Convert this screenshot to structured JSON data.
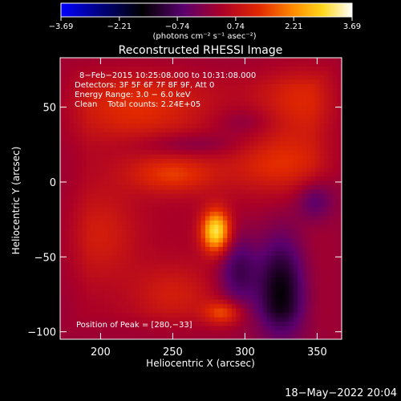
{
  "chart_data": {
    "type": "heatmap",
    "title": "Reconstructed RHESSI Image",
    "xlabel": "Heliocentric X (arcsec)",
    "ylabel": "Heliocentric Y (arcsec)",
    "xlim": [
      172,
      367
    ],
    "ylim": [
      -105,
      83
    ],
    "x_ticks": [
      200,
      250,
      300,
      350
    ],
    "y_ticks": [
      50,
      0,
      -50,
      -100
    ],
    "x_tick_labels": [
      "200",
      "250",
      "300",
      "350"
    ],
    "y_tick_labels": [
      "50",
      "0",
      "−50",
      "−100"
    ],
    "colorbar": {
      "min": -3.69,
      "max": 3.69,
      "ticks": [
        -3.69,
        -2.21,
        -0.74,
        0.74,
        2.21,
        3.69
      ],
      "tick_labels": [
        "−3.69",
        "−2.21",
        "−0.74",
        "0.74",
        "2.21",
        "3.69"
      ],
      "unit_label": "(photons cm⁻² s⁻¹ asec⁻²)"
    },
    "annotations": [
      "8−Feb−2015 10:25:08.000 to 10:31:08.000",
      "Detectors: 3F 5F 6F 7F 8F 9F, Att 0",
      "Energy Range: 3.0 − 6.0 keV",
      "Clean    Total counts: 2.24E+05",
      "Position of Peak = [280,−33]"
    ],
    "peak": {
      "x": 280,
      "y": -33,
      "value": 3.69
    },
    "sources": [
      {
        "x": 280,
        "y": -33,
        "sx": 7,
        "sy": 10,
        "amp": 2.9
      },
      {
        "x": 285,
        "y": -88,
        "sx": 9,
        "sy": 6,
        "amp": 1.4
      },
      {
        "x": 250,
        "y": 5,
        "sx": 22,
        "sy": 9,
        "amp": 1.1
      },
      {
        "x": 325,
        "y": 12,
        "sx": 25,
        "sy": 14,
        "amp": 1.0
      },
      {
        "x": 225,
        "y": 50,
        "sx": 35,
        "sy": 18,
        "amp": 1.0
      },
      {
        "x": 340,
        "y": 55,
        "sx": 22,
        "sy": 18,
        "amp": 0.9
      },
      {
        "x": 200,
        "y": -35,
        "sx": 18,
        "sy": 22,
        "amp": 0.7
      },
      {
        "x": 250,
        "y": -75,
        "sx": 20,
        "sy": 14,
        "amp": 0.7
      },
      {
        "x": 295,
        "y": -60,
        "sx": 10,
        "sy": 18,
        "amp": -1.2
      },
      {
        "x": 325,
        "y": -75,
        "sx": 12,
        "sy": 28,
        "amp": -1.9
      },
      {
        "x": 350,
        "y": -12,
        "sx": 10,
        "sy": 10,
        "amp": -1.0
      },
      {
        "x": 260,
        "y": 25,
        "sx": 28,
        "sy": 6,
        "amp": -0.6
      },
      {
        "x": 300,
        "y": 40,
        "sx": 15,
        "sy": 7,
        "amp": -0.5
      }
    ],
    "background": 0.35
  },
  "footer_timestamp": "18−May−2022 20:04"
}
